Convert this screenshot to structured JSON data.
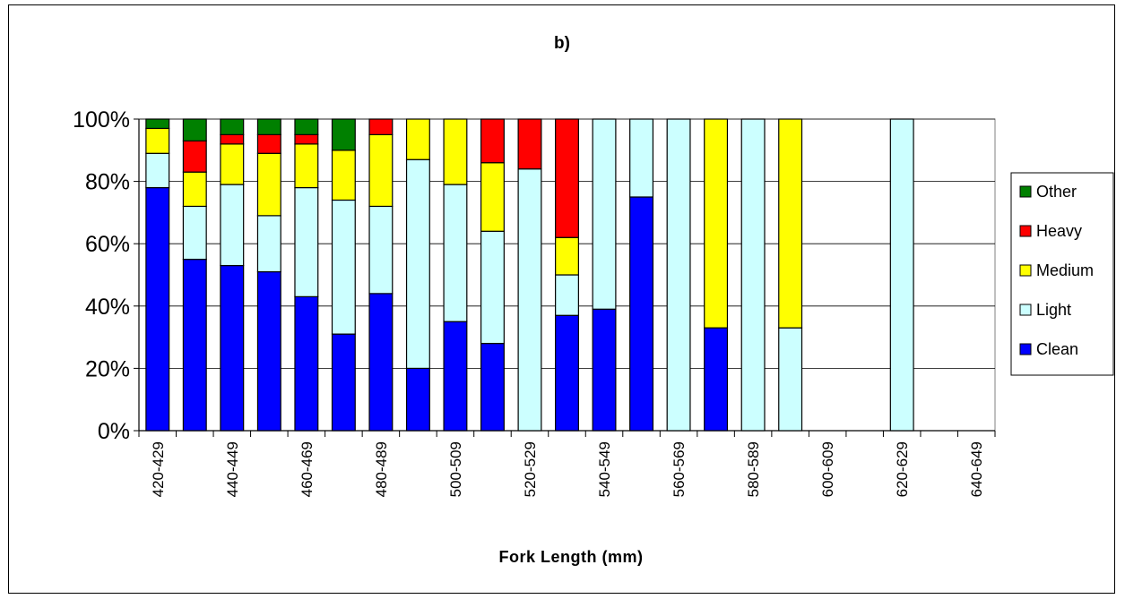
{
  "chart_data": {
    "type": "bar",
    "stacked": true,
    "percent": true,
    "title": "b)",
    "xlabel": "Fork Length (mm)",
    "ylabel": "",
    "ylim": [
      0,
      100
    ],
    "yticks": [
      "0%",
      "20%",
      "40%",
      "60%",
      "80%",
      "100%"
    ],
    "grid": true,
    "legend_position": "right",
    "categories": [
      "420-429",
      "430-439",
      "440-449",
      "450-459",
      "460-469",
      "470-479",
      "480-489",
      "490-499",
      "500-509",
      "510-519",
      "520-529",
      "530-539",
      "540-549",
      "550-559",
      "560-569",
      "570-579",
      "580-589",
      "590-599",
      "600-609",
      "610-619",
      "620-629",
      "630-639",
      "640-649"
    ],
    "x_tick_labels": [
      "420-429",
      "440-449",
      "460-469",
      "480-489",
      "500-509",
      "520-529",
      "540-549",
      "560-569",
      "580-589",
      "600-609",
      "620-629",
      "640-649"
    ],
    "series": [
      {
        "name": "Clean",
        "color": "#0000ff",
        "values": [
          78,
          55,
          53,
          51,
          43,
          31,
          44,
          20,
          35,
          28,
          0,
          37,
          39,
          75,
          0,
          33,
          0,
          0,
          0,
          0,
          0,
          0,
          0
        ]
      },
      {
        "name": "Light",
        "color": "#ccffff",
        "values": [
          11,
          17,
          26,
          18,
          35,
          43,
          28,
          67,
          44,
          36,
          84,
          13,
          61,
          25,
          100,
          0,
          100,
          33,
          0,
          0,
          100,
          0,
          0
        ]
      },
      {
        "name": "Medium",
        "color": "#ffff00",
        "values": [
          8,
          11,
          13,
          20,
          14,
          16,
          23,
          13,
          21,
          22,
          0,
          12,
          0,
          0,
          0,
          67,
          0,
          67,
          0,
          0,
          0,
          0,
          0
        ]
      },
      {
        "name": "Heavy",
        "color": "#ff0000",
        "values": [
          0,
          10,
          3,
          6,
          3,
          0,
          5,
          0,
          0,
          14,
          16,
          38,
          0,
          0,
          0,
          0,
          0,
          0,
          0,
          0,
          0,
          0,
          0
        ]
      },
      {
        "name": "Other",
        "color": "#008000",
        "values": [
          3,
          7,
          5,
          5,
          5,
          10,
          0,
          0,
          0,
          0,
          0,
          0,
          0,
          0,
          0,
          0,
          0,
          0,
          0,
          0,
          0,
          0,
          0
        ]
      }
    ],
    "legend": [
      "Other",
      "Heavy",
      "Medium",
      "Light",
      "Clean"
    ]
  }
}
